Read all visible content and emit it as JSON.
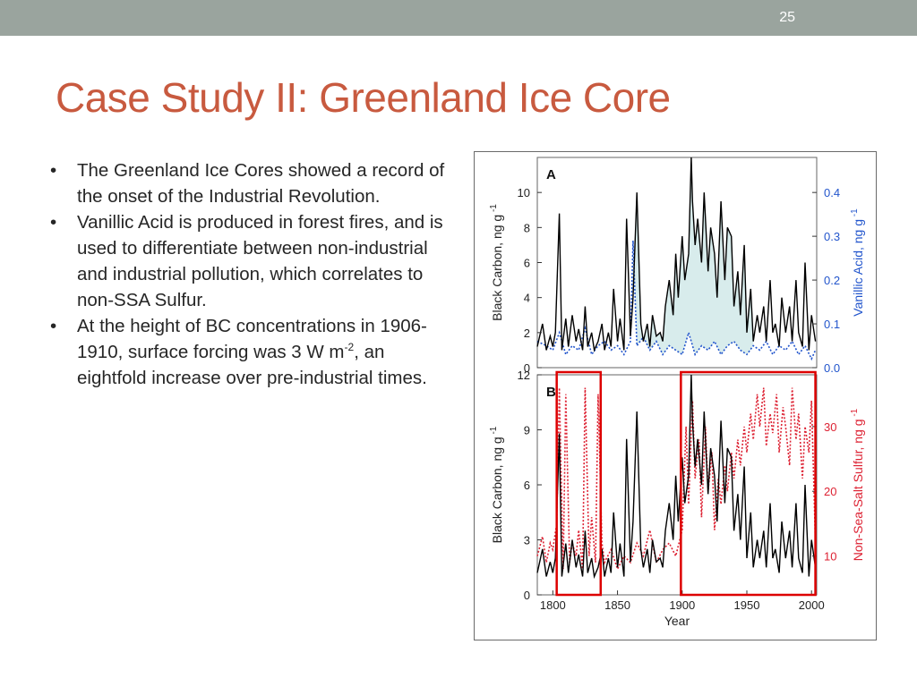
{
  "slide": {
    "number": "25",
    "title": "Case Study II: Greenland Ice Core",
    "bullets": [
      {
        "text": "The Greenland Ice Cores showed a record of the onset of the Industrial Revolution."
      },
      {
        "text": "Vanillic Acid is produced in forest fires, and is used to differentiate between non-industrial and industrial pollution, which correlates to non-SSA Sulfur."
      },
      {
        "pre": "At the height of BC concentrations in 1906-1910, surface forcing was 3 W m",
        "sup": "-2",
        "post": ", an eightfold increase over pre-industrial times."
      }
    ]
  },
  "colors": {
    "topbar": "#9aa49e",
    "title": "#c85a3f",
    "black_carbon": "#000000",
    "vanillic": "#2255cc",
    "sulfur": "#dd2233",
    "highlight_box": "#dd0000",
    "fill": "#d8ecec"
  },
  "chart_data": [
    {
      "type": "line",
      "panel_label": "A",
      "ylabel": "Black Carbon, ng g",
      "ylabel_sup": "-1",
      "y2label": "Vanillic Acid, ng g",
      "y2label_sup": "-1",
      "ylim": [
        0,
        12
      ],
      "y2lim": [
        0,
        0.48
      ],
      "xlim": [
        1788,
        2004
      ],
      "y_ticks": [
        "0",
        "2",
        "4",
        "6",
        "8",
        "10"
      ],
      "y_tick_values": [
        0,
        2,
        4,
        6,
        8,
        10
      ],
      "y2_ticks": [
        "0.0",
        "0.1",
        "0.2",
        "0.3",
        "0.4"
      ],
      "y2_tick_values": [
        0,
        0.1,
        0.2,
        0.3,
        0.4
      ],
      "series": [
        {
          "key": "bc",
          "style": "solid",
          "x": [
            1788,
            1792,
            1795,
            1798,
            1800,
            1802,
            1805,
            1807,
            1810,
            1812,
            1815,
            1818,
            1820,
            1823,
            1825,
            1827,
            1830,
            1832,
            1835,
            1838,
            1840,
            1843,
            1845,
            1847,
            1850,
            1852,
            1855,
            1857,
            1860,
            1862,
            1865,
            1868,
            1870,
            1873,
            1875,
            1877,
            1880,
            1883,
            1885,
            1887,
            1890,
            1893,
            1895,
            1897,
            1900,
            1902,
            1905,
            1907,
            1908,
            1910,
            1912,
            1915,
            1917,
            1920,
            1922,
            1925,
            1927,
            1930,
            1933,
            1935,
            1938,
            1940,
            1943,
            1945,
            1948,
            1950,
            1953,
            1955,
            1958,
            1960,
            1963,
            1965,
            1968,
            1970,
            1972,
            1975,
            1977,
            1980,
            1983,
            1985,
            1988,
            1990,
            1993,
            1995,
            1998,
            2000,
            2003
          ],
          "y": [
            1.2,
            2.5,
            1.0,
            1.8,
            1.2,
            2.0,
            8.8,
            1.0,
            2.8,
            1.2,
            3.0,
            1.5,
            2.2,
            1.0,
            3.5,
            1.2,
            2.0,
            1.0,
            1.5,
            2.5,
            1.0,
            2.0,
            1.2,
            4.5,
            1.5,
            2.8,
            1.0,
            8.5,
            1.8,
            4.0,
            10.0,
            2.5,
            1.5,
            2.5,
            1.2,
            3.0,
            1.8,
            2.0,
            1.5,
            3.5,
            5.0,
            3.0,
            6.5,
            4.0,
            7.5,
            5.0,
            6.5,
            12.0,
            9.5,
            7.0,
            8.5,
            6.0,
            10.0,
            5.5,
            8.0,
            6.5,
            4.0,
            9.5,
            5.0,
            8.0,
            7.5,
            3.5,
            5.5,
            3.0,
            7.0,
            2.0,
            4.5,
            1.5,
            3.0,
            2.0,
            3.5,
            1.5,
            5.0,
            2.0,
            2.5,
            1.2,
            4.0,
            2.0,
            3.5,
            1.5,
            5.0,
            2.0,
            1.2,
            6.0,
            1.0,
            3.0,
            1.5
          ]
        },
        {
          "key": "va",
          "style": "dotted",
          "axis": "right",
          "x": [
            1788,
            1795,
            1800,
            1805,
            1810,
            1815,
            1820,
            1825,
            1830,
            1835,
            1840,
            1845,
            1850,
            1855,
            1860,
            1862,
            1865,
            1870,
            1875,
            1880,
            1885,
            1890,
            1895,
            1900,
            1905,
            1910,
            1915,
            1920,
            1925,
            1930,
            1935,
            1940,
            1945,
            1950,
            1955,
            1960,
            1965,
            1970,
            1975,
            1980,
            1985,
            1990,
            1995,
            2000,
            2003
          ],
          "y": [
            0.06,
            0.05,
            0.04,
            0.08,
            0.03,
            0.05,
            0.04,
            0.09,
            0.03,
            0.05,
            0.06,
            0.04,
            0.05,
            0.03,
            0.06,
            0.29,
            0.05,
            0.07,
            0.04,
            0.06,
            0.03,
            0.05,
            0.04,
            0.03,
            0.08,
            0.03,
            0.05,
            0.04,
            0.06,
            0.03,
            0.05,
            0.06,
            0.04,
            0.03,
            0.05,
            0.04,
            0.06,
            0.03,
            0.05,
            0.04,
            0.06,
            0.03,
            0.05,
            0.02,
            0.04
          ]
        }
      ],
      "fill_between": {
        "x_from": 1860,
        "x_to": 1955
      }
    },
    {
      "type": "line",
      "panel_label": "B",
      "ylabel": "Black Carbon, ng g",
      "ylabel_sup": "-1",
      "y2label": "Non-Sea-Salt Sulfur, ng g",
      "y2label_sup": "-1",
      "xlabel": "Year",
      "ylim": [
        0,
        12
      ],
      "y2lim": [
        4,
        38
      ],
      "xlim": [
        1788,
        2004
      ],
      "x_ticks": [
        "1800",
        "1850",
        "1900",
        "1950",
        "2000"
      ],
      "x_tick_values": [
        1800,
        1850,
        1900,
        1950,
        2000
      ],
      "y_ticks": [
        "0",
        "3",
        "6",
        "9",
        "12"
      ],
      "y_tick_values": [
        0,
        3,
        6,
        9,
        12
      ],
      "y2_ticks": [
        "10",
        "20",
        "30"
      ],
      "y2_tick_values": [
        10,
        20,
        30
      ],
      "highlight_ranges": [
        [
          1803,
          1837
        ],
        [
          1899,
          2003
        ]
      ],
      "series": [
        {
          "key": "bc",
          "style": "solid",
          "x": [
            1788,
            1792,
            1795,
            1798,
            1800,
            1802,
            1805,
            1807,
            1810,
            1812,
            1815,
            1818,
            1820,
            1823,
            1825,
            1827,
            1830,
            1832,
            1835,
            1838,
            1840,
            1843,
            1845,
            1847,
            1850,
            1852,
            1855,
            1857,
            1860,
            1862,
            1865,
            1868,
            1870,
            1873,
            1875,
            1877,
            1880,
            1883,
            1885,
            1887,
            1890,
            1893,
            1895,
            1897,
            1900,
            1902,
            1905,
            1907,
            1908,
            1910,
            1912,
            1915,
            1917,
            1920,
            1922,
            1925,
            1927,
            1930,
            1933,
            1935,
            1938,
            1940,
            1943,
            1945,
            1948,
            1950,
            1953,
            1955,
            1958,
            1960,
            1963,
            1965,
            1968,
            1970,
            1972,
            1975,
            1977,
            1980,
            1983,
            1985,
            1988,
            1990,
            1993,
            1995,
            1998,
            2000,
            2003
          ],
          "y": [
            1.2,
            2.5,
            1.0,
            1.8,
            1.2,
            2.0,
            8.8,
            1.0,
            2.8,
            1.2,
            3.0,
            1.5,
            2.2,
            1.0,
            3.5,
            1.2,
            2.0,
            1.0,
            1.5,
            2.5,
            1.0,
            2.0,
            1.2,
            4.5,
            1.5,
            2.8,
            1.0,
            8.5,
            1.8,
            4.0,
            10.0,
            2.5,
            1.5,
            2.5,
            1.2,
            3.0,
            1.8,
            2.0,
            1.5,
            3.5,
            5.0,
            3.0,
            6.5,
            4.0,
            7.5,
            5.0,
            6.5,
            12.0,
            9.5,
            7.0,
            8.5,
            6.0,
            10.0,
            5.5,
            8.0,
            6.5,
            4.0,
            9.5,
            5.0,
            8.0,
            7.5,
            3.5,
            5.5,
            3.0,
            7.0,
            2.0,
            4.5,
            1.5,
            3.0,
            2.0,
            3.5,
            1.5,
            5.0,
            2.0,
            2.5,
            1.2,
            4.0,
            2.0,
            3.5,
            1.5,
            5.0,
            2.0,
            1.2,
            6.0,
            1.0,
            3.0,
            1.5
          ]
        },
        {
          "key": "nss",
          "style": "dotted",
          "axis": "right",
          "x": [
            1788,
            1792,
            1795,
            1798,
            1800,
            1803,
            1805,
            1808,
            1810,
            1813,
            1815,
            1818,
            1820,
            1823,
            1825,
            1828,
            1830,
            1833,
            1835,
            1838,
            1840,
            1845,
            1850,
            1855,
            1860,
            1865,
            1870,
            1875,
            1880,
            1885,
            1890,
            1895,
            1900,
            1903,
            1905,
            1908,
            1910,
            1913,
            1915,
            1918,
            1920,
            1923,
            1925,
            1928,
            1930,
            1933,
            1935,
            1938,
            1940,
            1943,
            1945,
            1948,
            1950,
            1953,
            1955,
            1958,
            1960,
            1963,
            1965,
            1968,
            1970,
            1973,
            1975,
            1978,
            1980,
            1983,
            1985,
            1988,
            1990,
            1993,
            1995,
            1998,
            2000,
            2003
          ],
          "y": [
            10,
            13,
            9,
            12,
            11,
            15,
            36,
            8,
            35,
            9,
            12,
            10,
            14,
            8,
            36,
            10,
            16,
            9,
            35,
            12,
            9,
            11,
            8,
            10,
            9,
            12,
            10,
            14,
            9,
            11,
            12,
            10,
            14,
            30,
            18,
            34,
            22,
            28,
            16,
            30,
            20,
            26,
            14,
            22,
            18,
            24,
            20,
            26,
            22,
            28,
            24,
            30,
            26,
            32,
            28,
            35,
            30,
            36,
            27,
            32,
            29,
            35,
            26,
            33,
            30,
            24,
            36,
            28,
            32,
            22,
            30,
            26,
            34,
            12
          ]
        }
      ]
    }
  ]
}
